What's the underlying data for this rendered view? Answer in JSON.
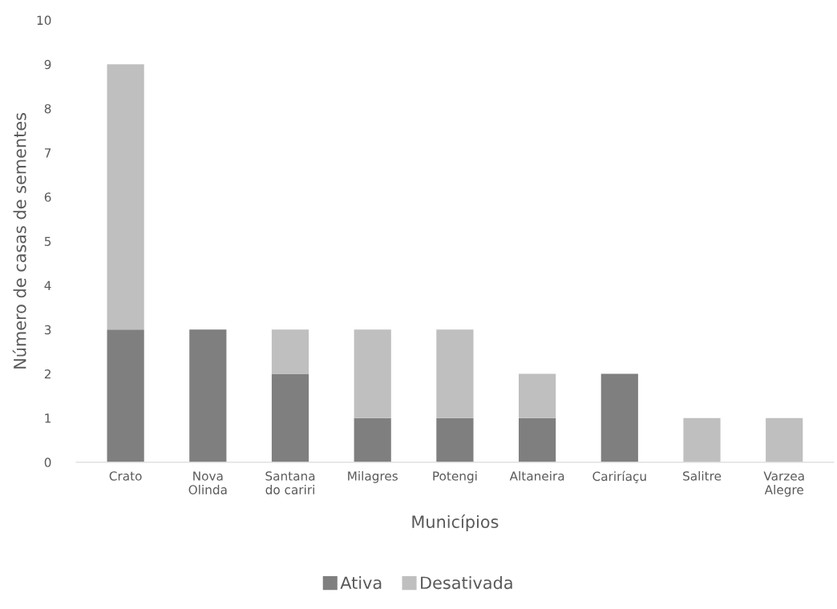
{
  "chart_data": {
    "type": "bar",
    "stacked": true,
    "xlabel": "Municípios",
    "ylabel": "Número de casas de sementes",
    "categories": [
      "Crato",
      "Nova\nOlinda",
      "Santana\ndo cariri",
      "Milagres",
      "Potengi",
      "Altaneira",
      "Cariríaçu",
      "Salitre",
      "Varzea\nAlegre"
    ],
    "series": [
      {
        "name": "Ativa",
        "color": "#7f7f7f",
        "values": [
          3,
          3,
          2,
          1,
          1,
          1,
          2,
          0,
          0
        ]
      },
      {
        "name": "Desativada",
        "color": "#bfbfbf",
        "values": [
          6,
          0,
          1,
          2,
          2,
          1,
          0,
          1,
          1
        ]
      }
    ],
    "ylim": [
      0,
      10
    ],
    "yticks": [
      0,
      1,
      2,
      3,
      4,
      5,
      6,
      7,
      8,
      9,
      10
    ],
    "grid": false,
    "legend": "bottom"
  }
}
